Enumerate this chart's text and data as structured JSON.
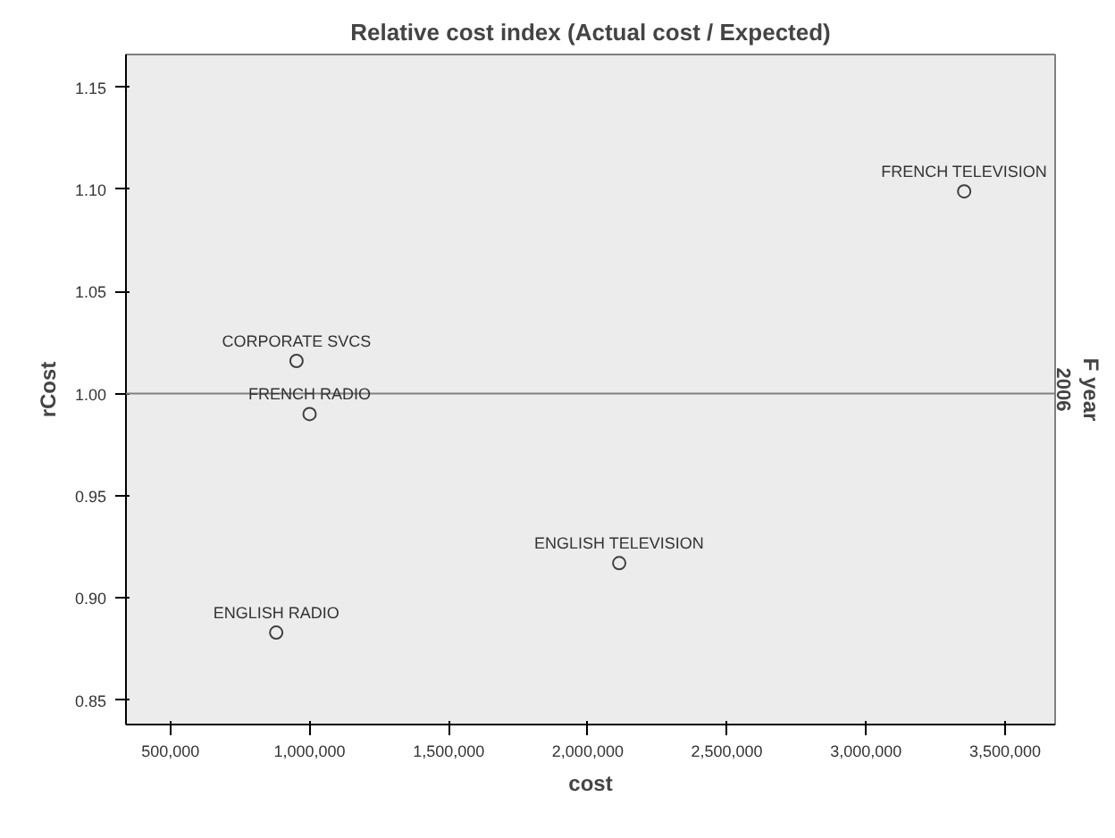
{
  "chart_data": {
    "type": "scatter",
    "title": "Relative cost index (Actual cost / Expected)",
    "xlabel": "cost",
    "ylabel": "rCost",
    "y2label": "F year",
    "x": [
      953000,
      1000000,
      880000,
      2113000,
      3353000
    ],
    "series": [
      {
        "color": "#404040",
        "values": [
          1.016,
          0.99,
          0.883,
          0.917,
          1.099
        ]
      }
    ],
    "marker": "circle",
    "xlim": [
      340000,
      3680000
    ],
    "xticks": [
      {
        "value": 500000,
        "label": "500,000"
      },
      {
        "value": 1000000,
        "label": "1,000,000"
      },
      {
        "value": 1500000,
        "label": "1,500,000"
      },
      {
        "value": 2000000,
        "label": "2,000,000"
      },
      {
        "value": 2500000,
        "label": "2,500,000"
      },
      {
        "value": 3000000,
        "label": "3,000,000"
      },
      {
        "value": 3500000,
        "label": "3,500,000"
      }
    ],
    "ylim": [
      0.838,
      1.166
    ],
    "yticks": [
      {
        "value": 0.85,
        "label": "0.85"
      },
      {
        "value": 0.9,
        "label": "0.90"
      },
      {
        "value": 0.95,
        "label": "0.95"
      },
      {
        "value": 1.0,
        "label": "1.00"
      },
      {
        "value": 1.05,
        "label": "1.05"
      },
      {
        "value": 1.1,
        "label": "1.10"
      },
      {
        "value": 1.15,
        "label": "1.15"
      }
    ],
    "ref_lines": [
      {
        "axis": "y",
        "value": 1.0,
        "color": "#808080"
      }
    ],
    "annotations": [
      {
        "text": "CORPORATE SVCS",
        "x": 953000,
        "y": 1.016
      },
      {
        "text": "FRENCH RADIO",
        "x": 1000000,
        "y": 0.99
      },
      {
        "text": "ENGLISH RADIO",
        "x": 880000,
        "y": 0.883
      },
      {
        "text": "ENGLISH TELEVISION",
        "x": 2113000,
        "y": 0.917
      },
      {
        "text": "FRENCH TELEVISION",
        "x": 3353000,
        "y": 1.099
      },
      "2006"
    ],
    "grid": false
  }
}
